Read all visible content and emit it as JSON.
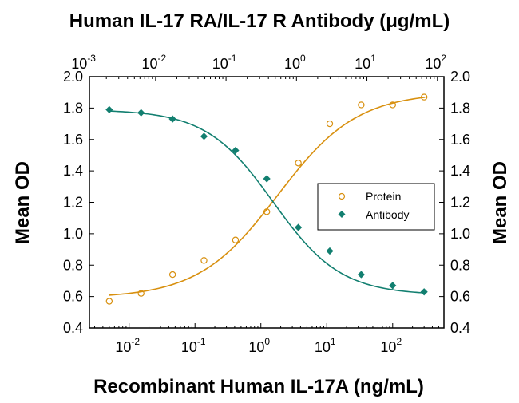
{
  "chart_data": {
    "type": "scatter",
    "title": "Human IL-17 RA/IL-17 R Antibody (μg/mL)",
    "xlabel": "Recombinant Human IL-17A (ng/mL)",
    "ylabel": "Mean OD",
    "ylabel_right": "Mean OD",
    "x_scale": "log",
    "xlim": [
      0.0025,
      600
    ],
    "ylim": [
      0.4,
      2.0
    ],
    "y_ticks": [
      "0.4",
      "0.6",
      "0.8",
      "1.0",
      "1.2",
      "1.4",
      "1.6",
      "1.8",
      "2.0"
    ],
    "x_ticks_bottom": [
      {
        "base": "10",
        "exp": "-2",
        "value": 0.01
      },
      {
        "base": "10",
        "exp": "-1",
        "value": 0.1
      },
      {
        "base": "10",
        "exp": "0",
        "value": 1
      },
      {
        "base": "10",
        "exp": "1",
        "value": 10
      },
      {
        "base": "10",
        "exp": "2",
        "value": 100
      }
    ],
    "x_ticks_top": [
      {
        "base": "10",
        "exp": "-3",
        "value": 0.001
      },
      {
        "base": "10",
        "exp": "-2",
        "value": 0.01
      },
      {
        "base": "10",
        "exp": "-1",
        "value": 0.1
      },
      {
        "base": "10",
        "exp": "0",
        "value": 1
      },
      {
        "base": "10",
        "exp": "1",
        "value": 10
      },
      {
        "base": "10",
        "exp": "2",
        "value": 100
      }
    ],
    "top_axis_xlim": [
      0.00115,
      124
    ],
    "legend_position": "middle-right",
    "series": [
      {
        "name": "Protein",
        "marker": "open-circle",
        "color": "#d8900f",
        "x": [
          0.005,
          0.0152,
          0.0457,
          0.137,
          0.412,
          1.23,
          3.7,
          11.1,
          33.3,
          100,
          300
        ],
        "y": [
          0.57,
          0.62,
          0.74,
          0.83,
          0.96,
          1.14,
          1.45,
          1.7,
          1.82,
          1.82,
          1.87
        ],
        "fit": {
          "bottom": 0.59,
          "top": 1.9,
          "ec50": 1.8,
          "hill": 0.72
        }
      },
      {
        "name": "Antibody",
        "marker": "filled-diamond",
        "color": "#127f70",
        "x": [
          0.005,
          0.0152,
          0.0457,
          0.137,
          0.412,
          1.23,
          3.7,
          11.1,
          33.3,
          100,
          300
        ],
        "y": [
          1.79,
          1.77,
          1.73,
          1.62,
          1.53,
          1.35,
          1.04,
          0.89,
          0.74,
          0.67,
          0.63
        ],
        "fit": {
          "bottom": 0.61,
          "top": 1.79,
          "ec50": 1.55,
          "hill": 0.85
        }
      }
    ]
  }
}
